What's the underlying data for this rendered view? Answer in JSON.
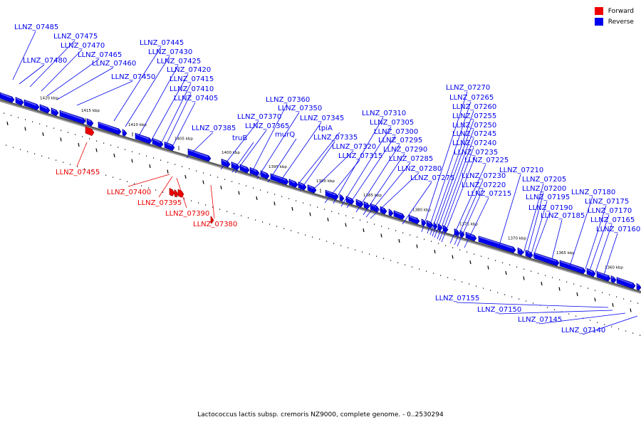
{
  "legend": [
    {
      "label": "Forward",
      "color": "#ee0000"
    },
    {
      "label": "Reverse",
      "color": "#0000ee"
    }
  ],
  "caption": "Lactococcus lactis subsp. cremoris NZ9000, complete genome. - 0..2530294",
  "colors": {
    "forward": "#ee0000",
    "reverse": "#0000ee",
    "axis": "#555555"
  },
  "ticks": [
    "1420 kbp",
    "1415 kbp",
    "1410 kbp",
    "1405 kbp",
    "1400 kbp",
    "1395 kbp",
    "1390 kbp",
    "1385 kbp",
    "1380 kbp",
    "1375 kbp",
    "1370 kbp",
    "1365 kbp",
    "1360 kbp"
  ],
  "forward_genes": [
    "LLNZ_07455",
    "LLNZ_07400",
    "LLNZ_07395",
    "LLNZ_07390",
    "LLNZ_07380"
  ],
  "reverse_genes": [
    "LLNZ_07485",
    "LLNZ_07480",
    "LLNZ_07475",
    "LLNZ_07470",
    "LLNZ_07465",
    "LLNZ_07460",
    "LLNZ_07450",
    "LLNZ_07445",
    "LLNZ_07430",
    "LLNZ_07425",
    "LLNZ_07420",
    "LLNZ_07415",
    "LLNZ_07410",
    "LLNZ_07405",
    "LLNZ_07385",
    "LLNZ_07370",
    "LLNZ_07365",
    "truB",
    "LLNZ_07360",
    "LLNZ_07350",
    "murQ",
    "LLNZ_07345",
    "tpiA",
    "LLNZ_07335",
    "LLNZ_07320",
    "LLNZ_07315",
    "LLNZ_07310",
    "LLNZ_07305",
    "LLNZ_07300",
    "LLNZ_07295",
    "LLNZ_07290",
    "LLNZ_07285",
    "LLNZ_07280",
    "LLNZ_07275",
    "LLNZ_07270",
    "LLNZ_07265",
    "LLNZ_07260",
    "LLNZ_07255",
    "LLNZ_07250",
    "LLNZ_07245",
    "LLNZ_07240",
    "LLNZ_07235",
    "LLNZ_07225",
    "LLNZ_07230",
    "LLNZ_07220",
    "LLNZ_07215",
    "LLNZ_07210",
    "LLNZ_07205",
    "LLNZ_07200",
    "LLNZ_07195",
    "LLNZ_07190",
    "LLNZ_07185",
    "LLNZ_07180",
    "LLNZ_07175",
    "LLNZ_07170",
    "LLNZ_07165",
    "LLNZ_07160",
    "LLNZ_07155",
    "LLNZ_07150",
    "LLNZ_07145",
    "LLNZ_07140"
  ]
}
